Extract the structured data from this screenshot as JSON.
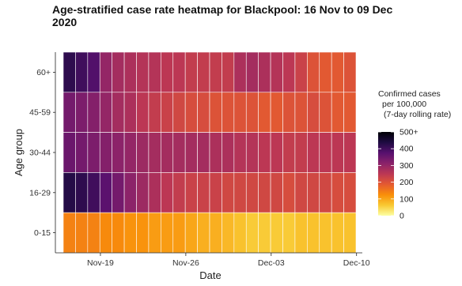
{
  "chart_data": {
    "type": "heatmap",
    "title_lines": [
      "Age-stratified case rate heatmap for Blackpool: 16 Nov to 09 Dec",
      "2020"
    ],
    "xlabel": "Date",
    "ylabel": "Age group",
    "x_ticks": [
      "Nov-19",
      "Nov-26",
      "Dec-03",
      "Dec-10"
    ],
    "x_tick_positions": [
      3,
      10,
      17,
      24
    ],
    "dates": [
      "2020-11-16",
      "2020-11-17",
      "2020-11-18",
      "2020-11-19",
      "2020-11-20",
      "2020-11-21",
      "2020-11-22",
      "2020-11-23",
      "2020-11-24",
      "2020-11-25",
      "2020-11-26",
      "2020-11-27",
      "2020-11-28",
      "2020-11-29",
      "2020-11-30",
      "2020-12-01",
      "2020-12-02",
      "2020-12-03",
      "2020-12-04",
      "2020-12-05",
      "2020-12-06",
      "2020-12-07",
      "2020-12-08",
      "2020-12-09"
    ],
    "rows": [
      "60+",
      "45-59",
      "30-44",
      "16-29",
      "0-15"
    ],
    "values": [
      [
        420,
        400,
        380,
        300,
        280,
        270,
        260,
        260,
        250,
        250,
        240,
        240,
        240,
        240,
        270,
        280,
        270,
        260,
        250,
        230,
        200,
        190,
        190,
        200
      ],
      [
        340,
        330,
        320,
        300,
        280,
        270,
        250,
        240,
        230,
        220,
        210,
        210,
        200,
        200,
        200,
        200,
        190,
        190,
        200,
        200,
        210,
        200,
        190,
        190
      ],
      [
        350,
        340,
        330,
        320,
        310,
        300,
        290,
        280,
        280,
        280,
        280,
        280,
        270,
        270,
        260,
        260,
        250,
        250,
        240,
        240,
        250,
        250,
        250,
        250
      ],
      [
        430,
        420,
        400,
        370,
        340,
        310,
        290,
        270,
        250,
        240,
        230,
        230,
        230,
        220,
        220,
        220,
        220,
        220,
        210,
        220,
        220,
        220,
        210,
        210
      ],
      [
        140,
        140,
        140,
        130,
        130,
        120,
        120,
        110,
        110,
        110,
        100,
        90,
        90,
        80,
        70,
        60,
        60,
        60,
        60,
        70,
        70,
        70,
        70,
        70
      ]
    ],
    "legend": {
      "title_lines": [
        "Confirmed cases",
        "per 100,000",
        "(7-day rolling rate)"
      ],
      "labels": [
        "500+",
        "400",
        "300",
        "200",
        "100",
        "0"
      ],
      "label_values": [
        500,
        400,
        300,
        200,
        100,
        0
      ]
    },
    "value_range": [
      0,
      500
    ],
    "colormap": "inferno-reversed",
    "colors": {
      "stops": [
        "#fcffa4",
        "#f9c932",
        "#f98e09",
        "#e45a31",
        "#bc3754",
        "#8a226a",
        "#57106e",
        "#1e0b42",
        "#000004"
      ],
      "grid_line": "#ffffff",
      "background": "#ffffff"
    }
  }
}
